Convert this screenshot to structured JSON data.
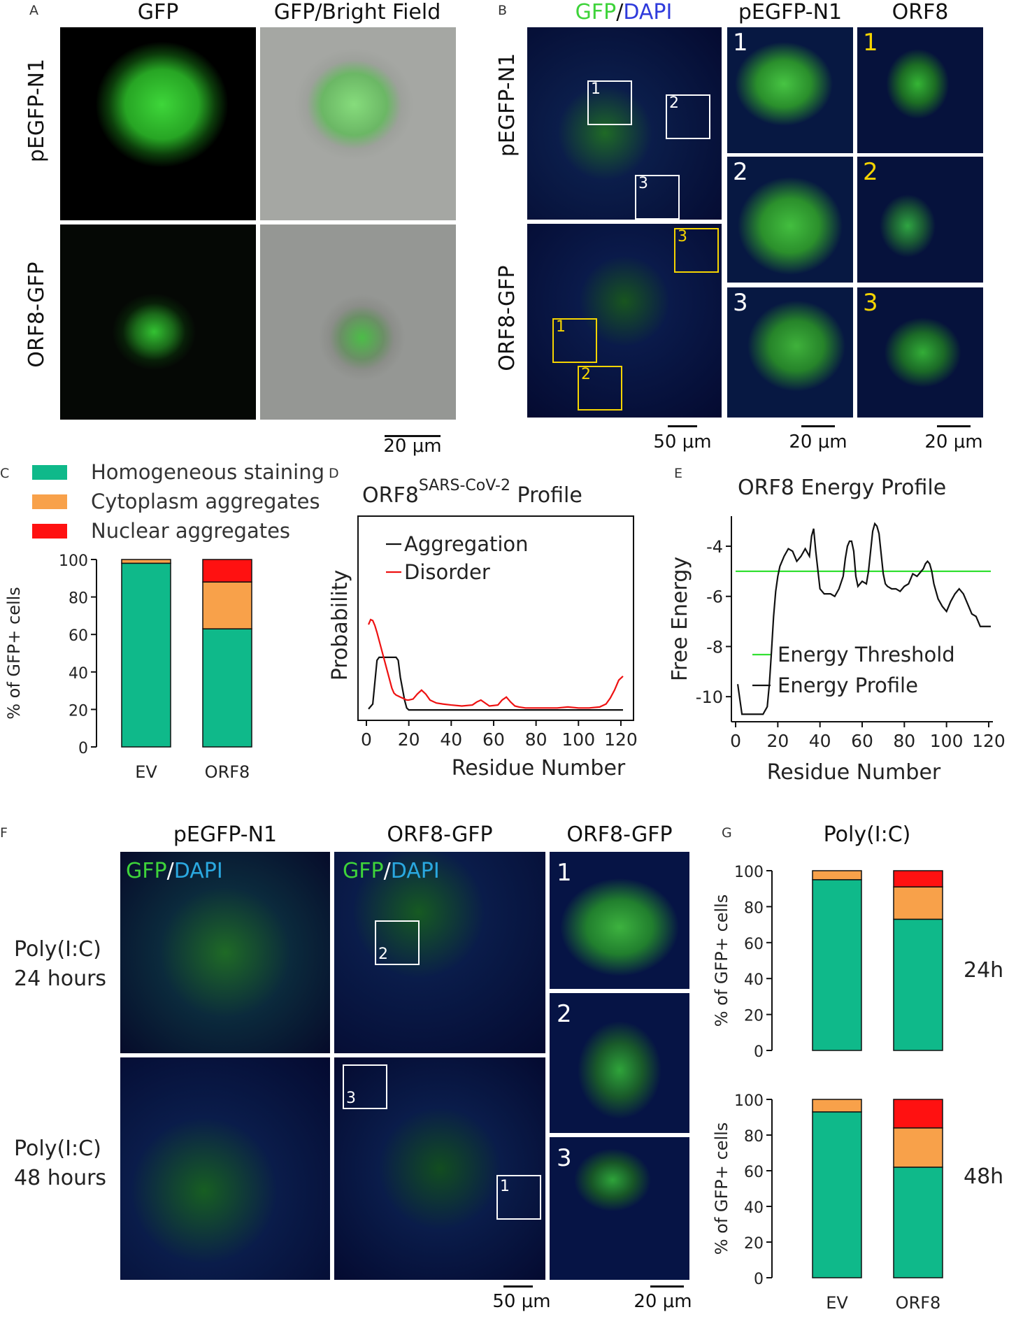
{
  "panel_letters": {
    "a": "A",
    "b": "B",
    "c": "C",
    "d": "D",
    "e": "E",
    "f": "F",
    "g": "G"
  },
  "colors": {
    "homogeneous": "#0fb98a",
    "cytoplasm": "#f8a14a",
    "nuclear": "#ff1111",
    "gfp": "#38d23e",
    "dapi": "#2e38d8",
    "aggregation_line": "#111111",
    "disorder_line": "#ee1111",
    "threshold_line": "#33e033",
    "inset_number_white": "#ffffff",
    "inset_number_yellow": "#f5d400"
  },
  "panelA": {
    "col1": "GFP",
    "col2": "GFP/Bright Field",
    "row1": "pEGFP-N1",
    "row2": "ORF8-GFP",
    "scale": "20 μm"
  },
  "panelB": {
    "title_gfp": "GFP",
    "title_sep": "/",
    "title_dapi": "DAPI",
    "col2": "pEGFP-N1",
    "col3": "ORF8",
    "row1": "pEGFP-N1",
    "row2": "ORF8-GFP",
    "boxes": [
      "1",
      "2",
      "3"
    ],
    "scale1": "50 μm",
    "scale2": "20 μm",
    "scale3": "20 μm"
  },
  "panelF": {
    "col1": "pEGFP-N1",
    "col2": "ORF8-GFP",
    "col3": "ORF8-GFP",
    "stain_gfp": "GFP",
    "stain_sep": "/",
    "stain_dapi": "DAPI",
    "row1_line1": "Poly(I:C)",
    "row1_line2": "24 hours",
    "row2_line1": "Poly(I:C)",
    "row2_line2": "48 hours",
    "boxes": [
      "1",
      "2",
      "3"
    ],
    "scale1": "50 μm",
    "scale2": "20 μm"
  },
  "panelG": {
    "title": "Poly(I:C)",
    "label_24": "24h",
    "label_48": "48h"
  },
  "chart_data": [
    {
      "panel": "C",
      "type": "bar",
      "stacked": true,
      "categories": [
        "EV",
        "ORF8"
      ],
      "series": [
        {
          "name": "Homogeneous staining",
          "values": [
            98,
            63
          ]
        },
        {
          "name": "Cytoplasm aggregates",
          "values": [
            2,
            25
          ]
        },
        {
          "name": "Nuclear aggregates",
          "values": [
            0,
            12
          ]
        }
      ],
      "ylabel": "% of GFP+ cells",
      "ylim": [
        0,
        100
      ],
      "yticks": [
        0,
        20,
        40,
        60,
        80,
        100
      ],
      "legend": "top"
    },
    {
      "panel": "D",
      "type": "line",
      "title": "ORF8",
      "title_sup": "SARS-CoV-2",
      "title_suffix": "Profile",
      "xlabel": "Residue Number",
      "ylabel": "Probability",
      "xlim": [
        0,
        122
      ],
      "xticks": [
        0,
        20,
        40,
        60,
        80,
        100,
        120
      ],
      "series": [
        {
          "name": "Aggregation",
          "x": [
            1,
            3,
            4,
            5,
            6,
            7,
            8,
            10,
            12,
            14,
            15,
            16,
            18,
            19,
            20,
            25,
            40,
            60,
            80,
            100,
            120,
            121
          ],
          "y": [
            0.03,
            0.08,
            0.3,
            0.52,
            0.55,
            0.55,
            0.55,
            0.55,
            0.55,
            0.55,
            0.52,
            0.35,
            0.12,
            0.04,
            0.02,
            0.02,
            0.02,
            0.02,
            0.02,
            0.02,
            0.02,
            0.02
          ]
        },
        {
          "name": "Disorder",
          "x": [
            1,
            2,
            3,
            4,
            5,
            6,
            7,
            8,
            9,
            10,
            11,
            12,
            13,
            14,
            15,
            16,
            17,
            18,
            19,
            20,
            22,
            24,
            26,
            28,
            30,
            33,
            36,
            40,
            45,
            50,
            52,
            54,
            56,
            58,
            62,
            64,
            66,
            68,
            70,
            72,
            75,
            80,
            85,
            90,
            95,
            100,
            105,
            110,
            113,
            115,
            117,
            119,
            121
          ],
          "y": [
            0.88,
            0.93,
            0.92,
            0.87,
            0.8,
            0.72,
            0.64,
            0.56,
            0.48,
            0.4,
            0.32,
            0.24,
            0.19,
            0.17,
            0.16,
            0.15,
            0.14,
            0.13,
            0.12,
            0.12,
            0.13,
            0.18,
            0.22,
            0.18,
            0.12,
            0.09,
            0.08,
            0.07,
            0.06,
            0.07,
            0.1,
            0.12,
            0.09,
            0.06,
            0.07,
            0.12,
            0.15,
            0.1,
            0.06,
            0.05,
            0.04,
            0.04,
            0.04,
            0.04,
            0.05,
            0.04,
            0.04,
            0.05,
            0.08,
            0.14,
            0.22,
            0.32,
            0.36
          ]
        }
      ],
      "legend": "top-left"
    },
    {
      "panel": "E",
      "type": "line",
      "title": "ORF8 Energy Profile",
      "xlabel": "Residue Number",
      "ylabel": "Free Energy",
      "xlim": [
        -2,
        122
      ],
      "ylim": [
        -11,
        -2.8
      ],
      "xticks": [
        0,
        20,
        40,
        60,
        80,
        100,
        120
      ],
      "yticks": [
        -10,
        -8,
        -6,
        -4
      ],
      "series": [
        {
          "name": "Energy Threshold",
          "x": [
            0,
            121
          ],
          "y": [
            -5,
            -5
          ]
        },
        {
          "name": "Energy Profile",
          "x": [
            1,
            2,
            3,
            6,
            10,
            13,
            15,
            16,
            17,
            18,
            19,
            20,
            21,
            23,
            25,
            27,
            29,
            31,
            33,
            35,
            36,
            37,
            38,
            40,
            42,
            45,
            47,
            49,
            51,
            52,
            53,
            54,
            55,
            56,
            57,
            58,
            60,
            62,
            63,
            64,
            65,
            66,
            67,
            68,
            69,
            70,
            71,
            72,
            74,
            76,
            78,
            80,
            82,
            84,
            86,
            88,
            89,
            90,
            91,
            92,
            93,
            94,
            95,
            96,
            98,
            100,
            102,
            104,
            106,
            108,
            110,
            112,
            114,
            116,
            118,
            120,
            121
          ],
          "y": [
            -9.5,
            -10.1,
            -10.7,
            -10.7,
            -10.7,
            -10.7,
            -10.4,
            -9.5,
            -8.2,
            -6.8,
            -5.8,
            -5.2,
            -4.8,
            -4.4,
            -4.1,
            -4.2,
            -4.6,
            -4.4,
            -4.1,
            -4.4,
            -3.6,
            -3.3,
            -4.2,
            -5.7,
            -5.9,
            -5.9,
            -6.0,
            -5.7,
            -5.2,
            -4.5,
            -4.0,
            -3.8,
            -3.8,
            -4.2,
            -5.2,
            -5.6,
            -5.4,
            -5.5,
            -5.0,
            -4.2,
            -3.4,
            -3.1,
            -3.2,
            -3.5,
            -4.3,
            -5.1,
            -5.5,
            -5.6,
            -5.7,
            -5.7,
            -5.8,
            -5.6,
            -5.5,
            -5.1,
            -5.2,
            -5.0,
            -4.9,
            -4.7,
            -4.6,
            -4.7,
            -5.0,
            -5.5,
            -5.8,
            -6.1,
            -6.4,
            -6.6,
            -6.2,
            -5.9,
            -5.7,
            -5.9,
            -6.3,
            -6.7,
            -6.8,
            -7.2,
            -7.2,
            -7.2,
            -7.2
          ]
        }
      ],
      "legend": "bottom-right"
    },
    {
      "panel": "G-24h",
      "type": "bar",
      "stacked": true,
      "categories": [
        "EV",
        "ORF8"
      ],
      "series": [
        {
          "name": "Homogeneous staining",
          "values": [
            95,
            73
          ]
        },
        {
          "name": "Cytoplasm aggregates",
          "values": [
            5,
            18
          ]
        },
        {
          "name": "Nuclear aggregates",
          "values": [
            0,
            9
          ]
        }
      ],
      "ylabel": "% of GFP+ cells",
      "ylim": [
        0,
        100
      ],
      "yticks": [
        0,
        20,
        40,
        60,
        80,
        100
      ]
    },
    {
      "panel": "G-48h",
      "type": "bar",
      "stacked": true,
      "categories": [
        "EV",
        "ORF8"
      ],
      "series": [
        {
          "name": "Homogeneous staining",
          "values": [
            93,
            62
          ]
        },
        {
          "name": "Cytoplasm aggregates",
          "values": [
            7,
            22
          ]
        },
        {
          "name": "Nuclear aggregates",
          "values": [
            0,
            16
          ]
        }
      ],
      "ylabel": "% of GFP+ cells",
      "ylim": [
        0,
        100
      ],
      "yticks": [
        0,
        20,
        40,
        60,
        80,
        100
      ]
    }
  ]
}
